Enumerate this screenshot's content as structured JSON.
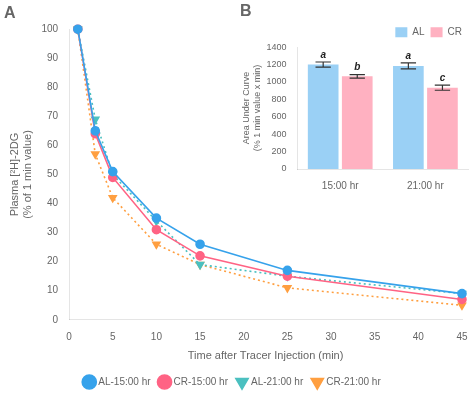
{
  "chart_data": [
    {
      "type": "line",
      "title": "A",
      "xlabel": "Time after Tracer Injection (min)",
      "ylabel": "Plasma [²H]-2DG\n(% of 1 min value)",
      "x": [
        1,
        3,
        5,
        10,
        15,
        25,
        45
      ],
      "series": [
        {
          "name": "AL-15:00 hr",
          "values": [
            100,
            65,
            51,
            35,
            26,
            17,
            9
          ],
          "marker": "circle",
          "line_style": "solid"
        },
        {
          "name": "CR-15:00 hr",
          "values": [
            100,
            64,
            49,
            31,
            22,
            15,
            7
          ],
          "marker": "circle",
          "line_style": "solid"
        },
        {
          "name": "AL-21:00 hr",
          "values": [
            100,
            69,
            50,
            34,
            19,
            15,
            9
          ],
          "marker": "triangle_down",
          "line_style": "dotted"
        },
        {
          "name": "CR-21:00 hr",
          "values": [
            100,
            57,
            42,
            26,
            19,
            11,
            5
          ],
          "marker": "triangle_down",
          "line_style": "dotted"
        }
      ],
      "xlim": [
        0,
        45
      ],
      "xticks": [
        0,
        5,
        10,
        15,
        20,
        25,
        30,
        35,
        40,
        45
      ],
      "ylim": [
        0,
        100
      ],
      "yticks": [
        0,
        10,
        20,
        30,
        40,
        50,
        60,
        70,
        80,
        90,
        100
      ],
      "grid": false,
      "legend": "bottom"
    },
    {
      "type": "bar",
      "title": "B",
      "ylabel": "Area Under Curve\n(% 1 min value x min)",
      "categories": [
        "15:00 hr",
        "21:00 hr"
      ],
      "series": [
        {
          "name": "AL",
          "values": [
            1200,
            1185
          ],
          "errors": [
            30,
            35
          ],
          "letters": [
            "a",
            "a"
          ]
        },
        {
          "name": "CR",
          "values": [
            1065,
            935
          ],
          "errors": [
            20,
            30
          ],
          "letters": [
            "b",
            "c"
          ]
        }
      ],
      "ylim": [
        0,
        1400
      ],
      "yticks": [
        0,
        200,
        400,
        600,
        800,
        1000,
        1200,
        1400
      ],
      "grid": false,
      "legend": "top"
    }
  ]
}
